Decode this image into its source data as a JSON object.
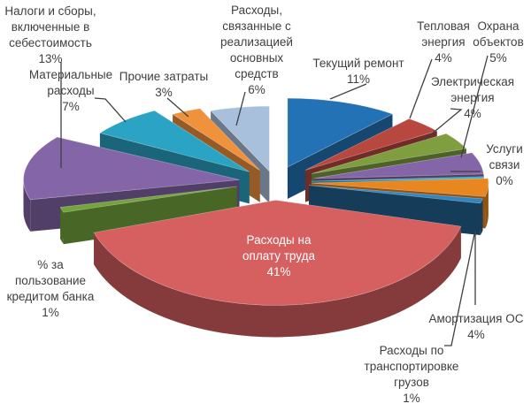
{
  "page": {
    "background": "#ffffff"
  },
  "chart_data": {
    "type": "pie",
    "projection": "3d-exploded",
    "start_angle_deg": 0,
    "direction": "clockwise",
    "legend_position": "none",
    "grid": false,
    "label_format": "{category} {value}%",
    "label_color": "#3f3f3f",
    "inside_label_color": "#ffffff",
    "leader_line_color": "#3f3f3f",
    "background": "#ffffff",
    "total": 100,
    "unit": "%",
    "categories": [
      "Текущий ремонт",
      "Тепловая энергия",
      "Электрическая энергия",
      "Охрана объектов",
      "Услуги связи",
      "Амортизация ОС",
      "Расходы по транспортировке грузов",
      "Расходы на оплату труда",
      "% за пользование кредитом банка",
      "Налоги и сборы, включенные в себестоимость",
      "Материальные расходы",
      "Прочие затраты",
      "Расходы, связанные с реализацией основных средств"
    ],
    "values": [
      11,
      4,
      4,
      5,
      0,
      4,
      1,
      41,
      1,
      13,
      7,
      3,
      6
    ],
    "colors": [
      "#2372b5",
      "#b8473f",
      "#7e9e3f",
      "#8465a8",
      "#29aec8",
      "#e8861f",
      "#2f86c3",
      "#d65f5f",
      "#74a43c",
      "#8465a8",
      "#2ba3c4",
      "#f0913c",
      "#a9c0dc"
    ]
  }
}
